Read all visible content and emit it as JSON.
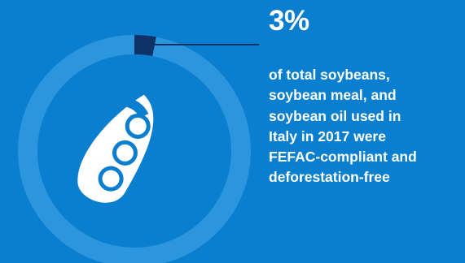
{
  "chart_data": {
    "type": "pie",
    "slices": [
      {
        "label": "FEFAC-compliant and deforestation-free",
        "value": 3
      },
      {
        "label": "",
        "value": 97
      }
    ],
    "unit": "%",
    "title": "",
    "legend": "none"
  },
  "stat": {
    "value": "3%",
    "caption_lines": [
      "of total soybeans,",
      "soybean meal, and",
      "soybean oil used in",
      "Italy in 2017 were",
      "FEFAC-compliant and",
      "deforestation-free"
    ]
  },
  "colors": {
    "background": "#0a7fd0",
    "ring_track": "#2b95dd",
    "highlight_segment": "#0d3266",
    "leader_line": "#0d3266",
    "icon": "#ffffff"
  },
  "icon": {
    "name": "soybean-pod-icon"
  }
}
